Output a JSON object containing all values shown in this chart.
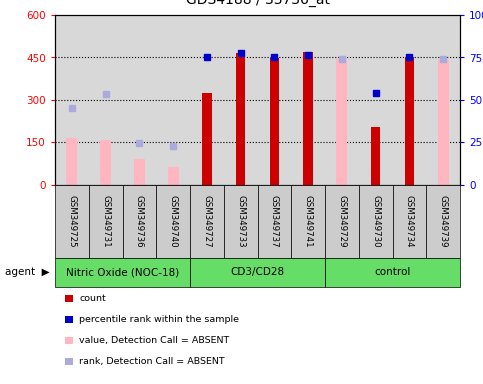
{
  "samples": [
    "GSM349725",
    "GSM349731",
    "GSM349736",
    "GSM349740",
    "GSM349727",
    "GSM349733",
    "GSM349737",
    "GSM349741",
    "GSM349729",
    "GSM349730",
    "GSM349734",
    "GSM349739"
  ],
  "groups": [
    {
      "label": "Nitric Oxide (NOC-18)",
      "start": 0,
      "end": 4
    },
    {
      "label": "CD3/CD28",
      "start": 4,
      "end": 8
    },
    {
      "label": "control",
      "start": 8,
      "end": 12
    }
  ],
  "count_values": [
    null,
    null,
    null,
    null,
    325,
    465,
    448,
    470,
    null,
    205,
    450,
    null
  ],
  "absent_value": [
    165,
    160,
    90,
    65,
    null,
    null,
    null,
    null,
    448,
    null,
    null,
    440
  ],
  "percentile_rank": [
    null,
    null,
    null,
    null,
    450,
    465,
    452,
    458,
    null,
    325,
    450,
    null
  ],
  "absent_rank": [
    270,
    320,
    148,
    138,
    null,
    null,
    null,
    null,
    445,
    null,
    null,
    445
  ],
  "ylim_left": [
    0,
    600
  ],
  "ylim_right": [
    0,
    100
  ],
  "yticks_left": [
    0,
    150,
    300,
    450,
    600
  ],
  "yticks_right": [
    0,
    25,
    50,
    75,
    100
  ],
  "ytick_labels_right": [
    "0",
    "25",
    "50",
    "75",
    "100%"
  ],
  "bar_color_count": "#cc0000",
  "bar_color_absent_value": "#ffb6c1",
  "dot_color_rank": "#0000cc",
  "dot_color_absent_rank": "#aaaadd",
  "legend_labels": [
    "count",
    "percentile rank within the sample",
    "value, Detection Call = ABSENT",
    "rank, Detection Call = ABSENT"
  ],
  "bg_color": "#d8d8d8",
  "group_color": "#66dd66",
  "sample_box_color": "#cccccc",
  "bar_width": 0.55
}
